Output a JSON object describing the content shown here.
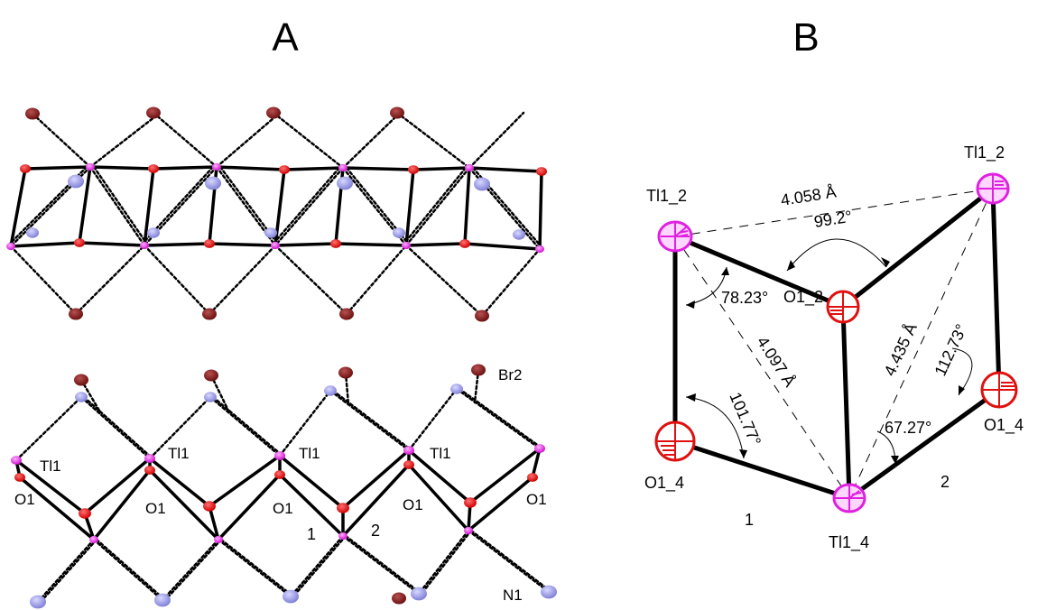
{
  "panels": {
    "a": "A",
    "b": "B"
  },
  "panel_a": {
    "atom_labels": {
      "br2": "Br2",
      "n1": "N1",
      "tl1": "Tl1",
      "o1": "O1"
    },
    "ring_labels": {
      "one": "1",
      "two": "2"
    }
  },
  "panel_b": {
    "atoms": {
      "tl1_2_left": "Tl1_2",
      "tl1_2_right": "Tl1_2",
      "o1_2": "O1_2",
      "o1_4_left": "O1_4",
      "o1_4_right": "O1_4",
      "tl1_4": "Tl1_4"
    },
    "measurements": {
      "dist_top": "4.058 Å",
      "angle_top": "99.2°",
      "angle_left_upper": "78.23°",
      "dist_diag_left": "4.097 Å",
      "angle_left_lower": "101.77°",
      "dist_diag_right": "4.435 Å",
      "angle_right_upper": "112.73°",
      "angle_right_lower": "67.27°"
    },
    "ring_labels": {
      "one": "1",
      "two": "2"
    }
  },
  "colors": {
    "tl": "#e020e0",
    "o": "#e01010",
    "br": "#7a1a1a",
    "n": "#9090e0",
    "bond": "#000000",
    "ring_label": "#e8962a"
  }
}
